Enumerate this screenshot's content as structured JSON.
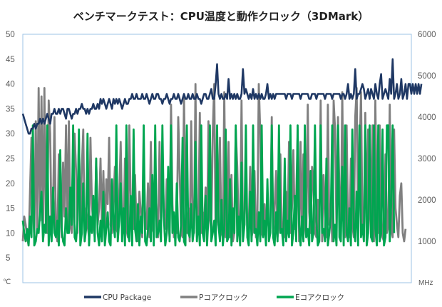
{
  "chart_data": {
    "type": "line",
    "title": "ベンチマークテスト：CPU温度と動作クロック（3DMark）",
    "y_left": {
      "unit": "℃",
      "min": 0,
      "max": 50,
      "ticks": [
        "5",
        "10",
        "15",
        "20",
        "25",
        "30",
        "35",
        "40",
        "45",
        "50"
      ]
    },
    "y_right": {
      "unit": "MHz",
      "min": 0,
      "max": 6000,
      "ticks": [
        "1000",
        "2000",
        "3000",
        "4000",
        "5000",
        "6000"
      ]
    },
    "x": {
      "min": 0,
      "max": 270
    },
    "legend_position": "bottom",
    "grid": false,
    "series": [
      {
        "name": "CPU Package",
        "axis": "left",
        "color": "#1f3864",
        "values": [
          34,
          33,
          32,
          31,
          30,
          30,
          31,
          31,
          32,
          31,
          32,
          32,
          33,
          32,
          33,
          32,
          33,
          34,
          33,
          32,
          34,
          34,
          35,
          34,
          34,
          35,
          34,
          35,
          35,
          34,
          33,
          35,
          35,
          34,
          33,
          34,
          34,
          35,
          34,
          35,
          35,
          36,
          35,
          35,
          34,
          35,
          34,
          35,
          35,
          36,
          35,
          35,
          36,
          35,
          37,
          36,
          37,
          36,
          35,
          36,
          37,
          36,
          35,
          37,
          36,
          37,
          36,
          37,
          36,
          35,
          36,
          37,
          36,
          36,
          37,
          37,
          38,
          37,
          37,
          38,
          37,
          37,
          37,
          38,
          37,
          37,
          38,
          37,
          36,
          37,
          38,
          37,
          37,
          38,
          38,
          37,
          37,
          36,
          37,
          37,
          38,
          37,
          36,
          37,
          37,
          38,
          37,
          37,
          38,
          37,
          36,
          37,
          38,
          37,
          37,
          38,
          37,
          37,
          38,
          37,
          37,
          38,
          37,
          37,
          36,
          37,
          38,
          38,
          37,
          37,
          38,
          39,
          37,
          37,
          40,
          44,
          38,
          37,
          38,
          37,
          37,
          38,
          37,
          41,
          37,
          38,
          37,
          38,
          37,
          38,
          37,
          37,
          38,
          43,
          38,
          39,
          38,
          37,
          38,
          37,
          39,
          37,
          38,
          37,
          38,
          37,
          38,
          37,
          37,
          38,
          40,
          37,
          38,
          37,
          38,
          37,
          38,
          38,
          38,
          38,
          38,
          38,
          38,
          37,
          38,
          38,
          38,
          37,
          38,
          38,
          38,
          38,
          38,
          37,
          38,
          38,
          38,
          38,
          38,
          37,
          37,
          38,
          38,
          38,
          37,
          38,
          38,
          38,
          38,
          38,
          37,
          38,
          38,
          38,
          38,
          37,
          38,
          38,
          38,
          38,
          38,
          37,
          38,
          38,
          37,
          38,
          40,
          37,
          38,
          37,
          38,
          43,
          37,
          38,
          38,
          39,
          40,
          39,
          37,
          38,
          39,
          37,
          39,
          38,
          37,
          40,
          38,
          37,
          40,
          42,
          37,
          38,
          39,
          38,
          37,
          41,
          38,
          45,
          37,
          38,
          40,
          37,
          38,
          41,
          37,
          38,
          40,
          37,
          40,
          40,
          38,
          40,
          38,
          40,
          38,
          40,
          38,
          40
        ]
      },
      {
        "name": "Pコアクロック",
        "axis": "right",
        "color": "#808080",
        "values": [
          1000,
          1600,
          1400,
          1100,
          900,
          2200,
          3500,
          1800,
          1100,
          3900,
          1200,
          4700,
          1500,
          4500,
          1200,
          4700,
          1400,
          1200,
          4400,
          3600,
          1100,
          1800,
          4000,
          1300,
          1000,
          3100,
          1900,
          1100,
          2900,
          1600,
          3800,
          1300,
          3900,
          1400,
          1200,
          2000,
          3600,
          2700,
          1200,
          3500,
          1300,
          2800,
          3700,
          1000,
          1800,
          1400,
          1100,
          3500,
          1900,
          1400,
          1100,
          3000,
          1400,
          1800,
          3000,
          1300,
          2700,
          1100,
          2500,
          1900,
          3500,
          1400,
          1200,
          2000,
          2800,
          1300,
          1200,
          2100,
          3400,
          1500,
          1200,
          3000,
          1300,
          1100,
          3800,
          1900,
          1500,
          1300,
          2600,
          1300,
          1000,
          2200,
          1700,
          1100,
          3000,
          1600,
          1300,
          2400,
          1100,
          3400,
          1300,
          1200,
          2500,
          1700,
          1100,
          3400,
          1200,
          3000,
          1700,
          1300,
          2500,
          1500,
          1100,
          4300,
          1900,
          1100,
          1400,
          1200,
          4000,
          2700,
          1200,
          1100,
          4500,
          2000,
          1200,
          1800,
          1000,
          3900,
          1500,
          1200,
          4800,
          1100,
          1400,
          4100,
          1200,
          1700,
          1400,
          2300,
          1100,
          3900,
          1600,
          1200,
          3600,
          4800,
          1100,
          1900,
          1400,
          3500,
          1200,
          1100,
          4600,
          1100,
          1300,
          3400,
          1100,
          2600,
          1000,
          1200,
          3700,
          2800,
          1300,
          1100,
          4400,
          1200,
          1400,
          2900,
          1200,
          1300,
          2800,
          1100,
          1300,
          2700,
          1100,
          1500,
          4800,
          3600,
          1200,
          1100,
          1900,
          1300,
          1500,
          1400,
          1300,
          4000,
          1200,
          1800,
          2700,
          1100,
          1400,
          3100,
          1300,
          1400,
          1100,
          2200,
          1300,
          3400,
          1200,
          1800,
          3200,
          1300,
          2000,
          3600,
          1000,
          3400,
          1200,
          3100,
          1400,
          1100,
          4300,
          1700,
          1200,
          2800,
          2300,
          1200,
          1100,
          2000,
          1000,
          4400,
          1000,
          2600,
          1700,
          1100,
          4300,
          1400,
          1900,
          1000,
          4400,
          3700,
          1300,
          4000,
          2200,
          1100,
          4600,
          1300,
          1100,
          3800,
          1400,
          1100,
          3000,
          1400,
          1100,
          4000,
          4700,
          1300,
          3000,
          4600,
          1300,
          1100,
          4100,
          1300,
          3700,
          1900,
          1100,
          3800,
          1000,
          4400,
          1600,
          1200,
          3800,
          1700,
          1100,
          1000,
          3100,
          1200,
          1400,
          4300,
          1300,
          1100,
          3700,
          1800,
          1400,
          1100,
          2100,
          2400,
          1200,
          1000,
          1300
        ]
      },
      {
        "name": "Eコアクロック",
        "axis": "right",
        "color": "#00a550",
        "values": [
          1500,
          1200,
          1000,
          1300,
          900,
          1600,
          1100,
          3800,
          900,
          1000,
          1300,
          1200,
          1700,
          2200,
          1000,
          1400,
          1200,
          3800,
          900,
          1600,
          1000,
          2300,
          1200,
          1100,
          1500,
          900,
          3200,
          1300,
          1000,
          900,
          1800,
          1200,
          1200,
          2300,
          1400,
          3800,
          1100,
          1000,
          1500,
          3700,
          900,
          1200,
          2400,
          1000,
          1300,
          3600,
          900,
          1600,
          1200,
          2100,
          1000,
          3000,
          1200,
          900,
          1500,
          1000,
          2200,
          900,
          1300,
          1700,
          1000,
          900,
          2500,
          1400,
          1100,
          3800,
          1000,
          1500,
          2400,
          1000,
          1800,
          900,
          3800,
          1200,
          1000,
          2100,
          900,
          3700,
          1300,
          1000,
          1900,
          900,
          1600,
          1200,
          3800,
          1000,
          900,
          1300,
          1800,
          1000,
          2600,
          900,
          3800,
          1100,
          1200,
          1500,
          1000,
          3800,
          1600,
          900,
          1200,
          2800,
          1000,
          3800,
          1200,
          1700,
          900,
          2400,
          1100,
          1000,
          1400,
          3500,
          1000,
          900,
          3800,
          1200,
          1100,
          1900,
          1000,
          1300,
          3400,
          1000,
          1600,
          900,
          3800,
          1200,
          1000,
          2100,
          900,
          1600,
          3800,
          1000,
          1200,
          1500,
          900,
          3800,
          1400,
          1000,
          2000,
          900,
          1300,
          3700,
          1000,
          1100,
          2500,
          900,
          1800,
          1200,
          3800,
          1000,
          1600,
          900,
          2900,
          1000,
          1400,
          3800,
          1100,
          900,
          2200,
          1000,
          3800,
          1200,
          1300,
          900,
          1700,
          1000,
          3800,
          1100,
          1500,
          900,
          2500,
          1000,
          1200,
          3800,
          1100,
          900,
          1700,
          1000,
          3800,
          1200,
          1300,
          900,
          3000,
          1000,
          1500,
          1100,
          3800,
          900,
          1200,
          2100,
          1000,
          3800,
          1400,
          900,
          1600,
          1000,
          3800,
          1100,
          1300,
          900,
          2700,
          1000,
          1200,
          3800,
          1500,
          900,
          1000,
          3800,
          1200,
          1300,
          1000,
          3000,
          900,
          1200,
          1600,
          3800,
          1000,
          1400,
          900,
          3800,
          1100,
          1000,
          2800,
          900,
          3800,
          1200,
          1000,
          1800,
          900,
          3700,
          1300,
          1000,
          2200,
          900,
          3800,
          1100,
          1400,
          1000,
          3800,
          900,
          1200,
          3800,
          1100,
          1000,
          3800,
          1300,
          900,
          3800,
          1000,
          1200,
          3700,
          900,
          1100,
          3800,
          3800,
          1000,
          1900,
          3800,
          1200
        ]
      }
    ]
  }
}
